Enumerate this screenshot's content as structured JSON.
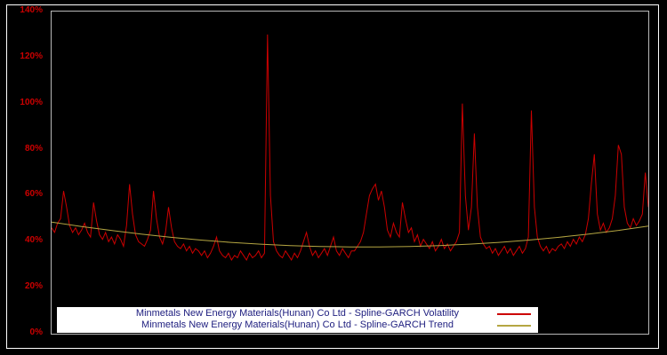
{
  "chart": {
    "background": "#000000",
    "plot_border_color": "#b8b8b8",
    "y_ticks": [
      "0%",
      "20%",
      "40%",
      "60%",
      "80%",
      "100%",
      "120%",
      "140%"
    ],
    "y_tick_color": "#cc0000"
  },
  "legend": {
    "items": [
      {
        "label": "Minmetals New Energy Materials(Hunan) Co Ltd - Spline-GARCH Volatility",
        "color": "#cc0000"
      },
      {
        "label": "Minmetals New Energy Materials(Hunan) Co Ltd - Spline-GARCH Trend",
        "color": "#b5a642"
      }
    ]
  },
  "chart_data": {
    "type": "line",
    "title": "",
    "xlabel": "",
    "ylabel": "",
    "ylim": [
      0,
      140
    ],
    "y_tick_step": 20,
    "grid": false,
    "legend_position": "bottom",
    "series": [
      {
        "name": "Minmetals New Energy Materials(Hunan) Co Ltd - Spline-GARCH Volatility",
        "color": "#cc0000",
        "unit": "%",
        "values": [
          46,
          44,
          48,
          50,
          62,
          55,
          47,
          44,
          46,
          43,
          45,
          48,
          44,
          42,
          57,
          49,
          43,
          41,
          44,
          40,
          42,
          39,
          43,
          41,
          38,
          47,
          65,
          52,
          43,
          40,
          39,
          38,
          41,
          45,
          62,
          50,
          42,
          39,
          44,
          55,
          46,
          40,
          38,
          37,
          39,
          36,
          38,
          35,
          37,
          36,
          34,
          36,
          33,
          35,
          38,
          42,
          36,
          34,
          33,
          35,
          32,
          34,
          33,
          36,
          34,
          32,
          35,
          33,
          34,
          36,
          33,
          35,
          130,
          60,
          40,
          36,
          34,
          33,
          36,
          34,
          32,
          35,
          33,
          36,
          40,
          44,
          38,
          34,
          36,
          33,
          35,
          37,
          34,
          38,
          42,
          36,
          34,
          37,
          35,
          33,
          36,
          36,
          38,
          40,
          44,
          52,
          60,
          63,
          65,
          58,
          62,
          55,
          45,
          42,
          48,
          44,
          42,
          57,
          50,
          44,
          46,
          40,
          43,
          38,
          41,
          39,
          37,
          40,
          36,
          38,
          41,
          37,
          39,
          36,
          38,
          40,
          44,
          100,
          60,
          45,
          55,
          87,
          55,
          42,
          39,
          37,
          38,
          35,
          37,
          34,
          36,
          38,
          35,
          37,
          34,
          36,
          38,
          35,
          37,
          42,
          97,
          55,
          42,
          38,
          36,
          38,
          35,
          37,
          36,
          38,
          39,
          37,
          40,
          38,
          41,
          39,
          42,
          40,
          43,
          50,
          65,
          78,
          52,
          45,
          48,
          44,
          46,
          50,
          60,
          82,
          78,
          55,
          48,
          46,
          50,
          47,
          49,
          52,
          70,
          55
        ]
      },
      {
        "name": "Minmetals New Energy Materials(Hunan) Co Ltd - Spline-GARCH Trend",
        "color": "#b5a642",
        "unit": "%",
        "values": [
          48.5,
          46.6,
          44.9,
          43.3,
          41.9,
          40.7,
          39.7,
          38.9,
          38.3,
          37.9,
          37.7,
          37.7,
          37.9,
          38.3,
          38.9,
          39.7,
          40.7,
          41.9,
          43.3,
          44.9,
          46.8
        ]
      }
    ]
  }
}
